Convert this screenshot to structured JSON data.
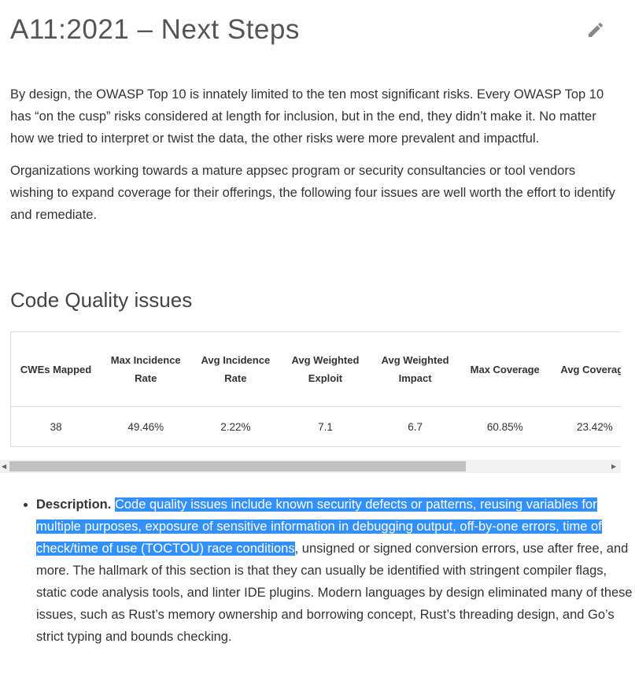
{
  "header": {
    "title": "A11:2021 – Next Steps",
    "edit_icon": "pencil-icon"
  },
  "intro": {
    "p1": "By design, the OWASP Top 10 is innately limited to the ten most significant risks. Every OWASP Top 10 has “on the cusp” risks considered at length for inclusion, but in the end, they didn’t make it. No matter how we tried to interpret or twist the data, the other risks were more prevalent and impactful.",
    "p2": "Organizations working towards a mature appsec program or security consultancies or tool vendors wishing to expand coverage for their offerings, the following four issues are well worth the effort to identify and remediate."
  },
  "section": {
    "title": "Code Quality issues"
  },
  "table": {
    "headers": [
      "CWEs Mapped",
      "Max Incidence Rate",
      "Avg Incidence Rate",
      "Avg Weighted Exploit",
      "Avg Weighted Impact",
      "Max Coverage",
      "Avg Coverage"
    ],
    "row": [
      "38",
      "49.46%",
      "2.22%",
      "7.1",
      "6.7",
      "60.85%",
      "23.42%"
    ]
  },
  "description": {
    "label": "Description.",
    "selected_text": "Code quality issues include known security defects or patterns, reusing variables for multiple purposes, exposure of sensitive information in debugging output, off-by-one errors, time of check/time of use (TOCTOU) race conditions",
    "rest_text": ", unsigned or signed conversion errors, use after free, and more. The hallmark of this section is that they can usually be identified with stringent compiler flags, static code analysis tools, and linter IDE plugins. Modern languages by design eliminated many of these issues, such as Rust’s memory ownership and borrowing concept, Rust’s threading design, and Go’s strict typing and bounds checking."
  },
  "colors": {
    "selection": "#3390ff",
    "scrollbar_thumb": "#c1c1c1"
  }
}
